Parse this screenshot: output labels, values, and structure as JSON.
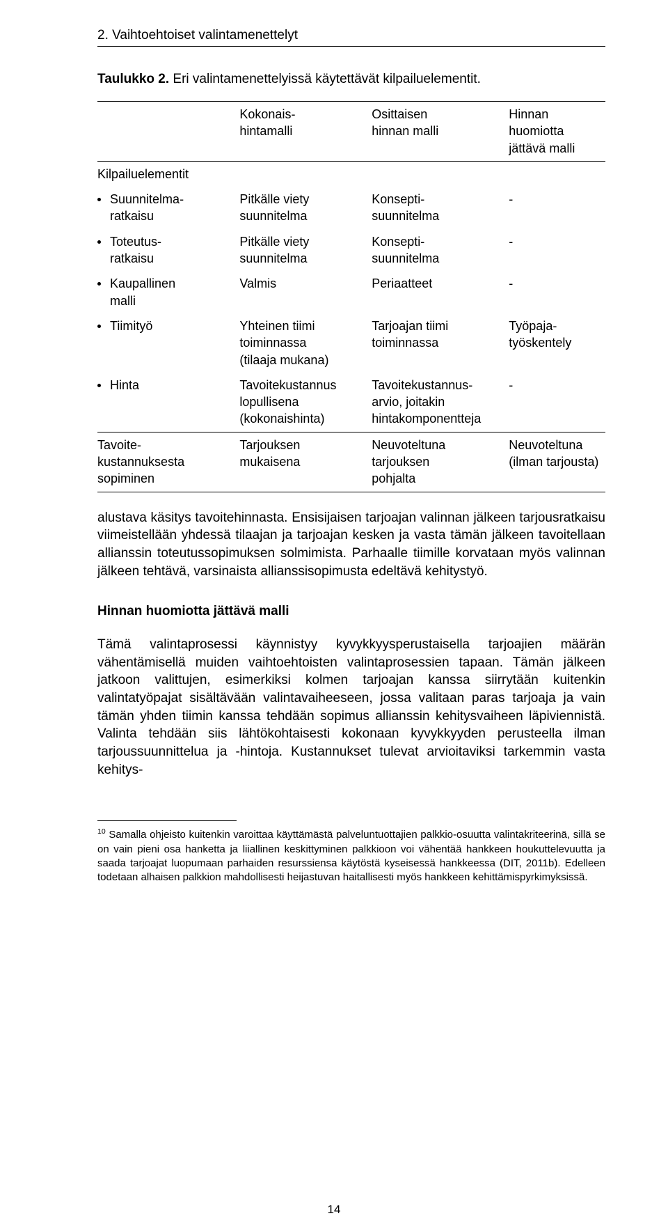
{
  "heading": "2. Vaihtoehtoiset valintamenettelyt",
  "caption_prefix": "Taulukko 2.",
  "caption_rest": " Eri valintamenettelyissä käytettävät kilpailuelementit.",
  "table": {
    "header": {
      "c1": "Kokonais-\nhintamalli",
      "c2": "Osittaisen\nhinnan malli",
      "c3": "Hinnan huomiotta\njättävä malli"
    },
    "group_label": "Kilpailuelementit",
    "rows": [
      {
        "label": "Suunnitelma-\nratkaisu",
        "c1": "Pitkälle viety\nsuunnitelma",
        "c2": "Konsepti-\nsuunnitelma",
        "c3": "-"
      },
      {
        "label": "Toteutus-\nratkaisu",
        "c1": "Pitkälle viety\nsuunnitelma",
        "c2": "Konsepti-\nsuunnitelma",
        "c3": "-"
      },
      {
        "label": "Kaupallinen\nmalli",
        "c1": "Valmis",
        "c2": "Periaatteet",
        "c3": "-"
      },
      {
        "label": "Tiimityö",
        "c1": "Yhteinen tiimi\ntoiminnassa\n(tilaaja mukana)",
        "c2": "Tarjoajan tiimi\ntoiminnassa",
        "c3": "Työpaja-\ntyöskentely"
      },
      {
        "label": "Hinta",
        "c1": "Tavoitekustannus\nlopullisena\n(kokonaishinta)",
        "c2": "Tavoitekustannus-\narvio, joitakin\nhintakomponentteja",
        "c3": "-"
      }
    ],
    "footer": {
      "label": "Tavoite-\nkustannuksesta\nsopiminen",
      "c1": "Tarjouksen\nmukaisena",
      "c2": "Neuvoteltuna\ntarjouksen\npohjalta",
      "c3": "Neuvoteltuna\n(ilman tarjousta)"
    }
  },
  "para1": "alustava käsitys tavoitehinnasta. Ensisijaisen tarjoajan valinnan jälkeen tarjousratkaisu viimeistellään yhdessä tilaajan ja tarjoajan kesken ja vasta tämän jälkeen tavoitellaan allianssin toteutussopimuksen solmimista. Parhaalle tiimille korvataan myös valinnan jälkeen tehtävä, varsinaista allianssisopimusta edeltävä kehitystyö.",
  "sub_heading": "Hinnan huomiotta jättävä malli",
  "para2": "Tämä valintaprosessi käynnistyy kyvykkyysperustaisella tarjoajien määrän vähentämisellä muiden vaihtoehtoisten valintaprosessien tapaan. Tämän jälkeen jatkoon valittujen, esimerkiksi kolmen tarjoajan kanssa siirrytään kuitenkin valintatyöpajat sisältävään valintavaiheeseen, jossa valitaan paras tarjoaja ja vain tämän yhden tiimin kanssa tehdään sopimus allianssin kehitysvaiheen läpiviennistä. Valinta tehdään siis lähtökohtaisesti kokonaan kyvykkyyden perusteella ilman tarjoussuunnittelua ja -hintoja. Kustannukset tulevat arvioitaviksi tarkemmin vasta kehitys-",
  "footnote_num": "10",
  "footnote": " Samalla ohjeisto kuitenkin varoittaa käyttämästä palveluntuottajien palkkio-osuutta valintakriteerinä, sillä se on vain pieni osa hanketta ja liiallinen keskittyminen palkkioon voi vähentää hankkeen houkuttelevuutta ja saada tarjoajat luopumaan parhaiden resurssiensa käytöstä kyseisessä hankkeessa (DIT, 2011b). Edelleen todetaan alhaisen palkkion mahdollisesti heijastuvan haitallisesti myös hankkeen kehittämispyrkimyksissä.",
  "page_number": "14"
}
